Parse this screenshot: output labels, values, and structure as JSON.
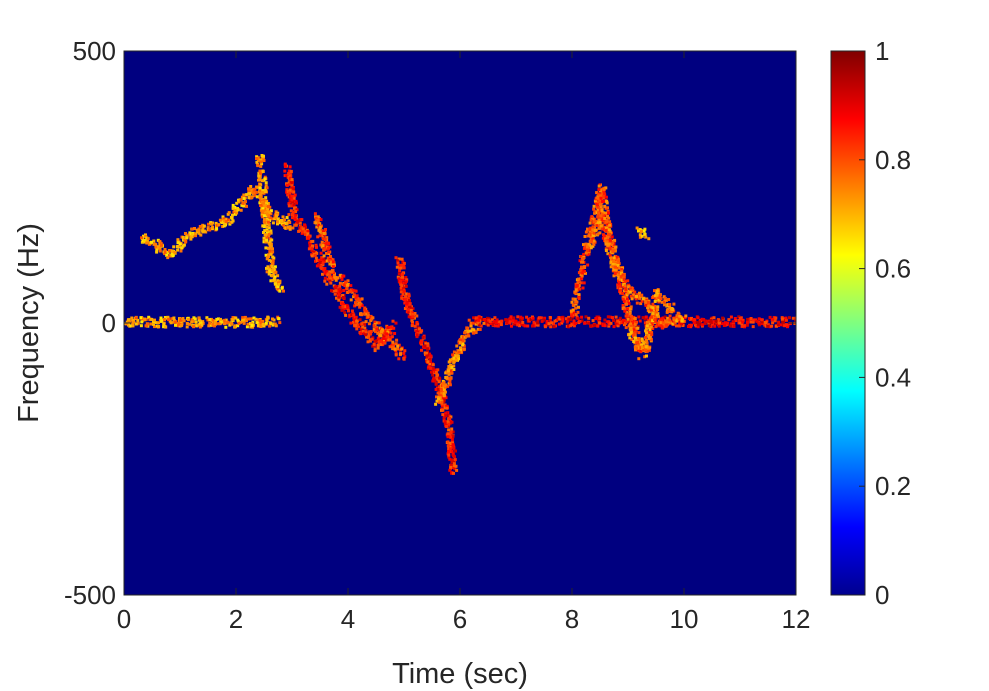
{
  "chart_data": {
    "type": "heatmap",
    "title": "",
    "xlabel": "Time (sec)",
    "ylabel": "Frequency (Hz)",
    "xlim": [
      0,
      12
    ],
    "ylim": [
      -500,
      500
    ],
    "x_ticks": [
      0,
      2,
      4,
      6,
      8,
      10,
      12
    ],
    "y_ticks": [
      -500,
      0,
      500
    ],
    "x_tick_labels": [
      "0",
      "2",
      "4",
      "6",
      "8",
      "10",
      "12"
    ],
    "y_tick_labels": [
      "-500",
      "0",
      "500"
    ],
    "colormap": "jet",
    "background_value": 0,
    "colorbar": {
      "range": [
        0,
        1
      ],
      "ticks": [
        0,
        0.2,
        0.4,
        0.6,
        0.8,
        1
      ],
      "tick_labels": [
        "0",
        "0.2",
        "0.4",
        "0.6",
        "0.8",
        "1"
      ],
      "placement": "right"
    },
    "ridges": [
      {
        "points": [
          [
            0,
            5
          ],
          [
            1,
            4
          ],
          [
            2,
            4
          ],
          [
            2.8,
            5
          ]
        ],
        "intensity": 0.72
      },
      {
        "points": [
          [
            0.3,
            160
          ],
          [
            0.8,
            130
          ],
          [
            1.2,
            170
          ],
          [
            1.8,
            190
          ],
          [
            2.3,
            250
          ],
          [
            2.6,
            200
          ],
          [
            3.0,
            180
          ]
        ],
        "intensity": 0.72
      },
      {
        "points": [
          [
            2.4,
            310
          ],
          [
            2.5,
            200
          ],
          [
            2.6,
            100
          ],
          [
            2.8,
            60
          ]
        ],
        "intensity": 0.72
      },
      {
        "points": [
          [
            2.9,
            290
          ],
          [
            3.0,
            200
          ],
          [
            3.2,
            170
          ],
          [
            3.5,
            110
          ],
          [
            4.0,
            20
          ],
          [
            4.5,
            -40
          ],
          [
            4.8,
            0
          ]
        ],
        "intensity": 0.85
      },
      {
        "points": [
          [
            3.4,
            200
          ],
          [
            3.7,
            100
          ],
          [
            4.1,
            50
          ],
          [
            4.5,
            -10
          ],
          [
            5.0,
            -60
          ]
        ],
        "intensity": 0.8
      },
      {
        "points": [
          [
            4.9,
            120
          ],
          [
            5.0,
            50
          ],
          [
            5.3,
            -30
          ],
          [
            5.6,
            -110
          ],
          [
            5.8,
            -200
          ],
          [
            5.85,
            -275
          ]
        ],
        "intensity": 0.85
      },
      {
        "points": [
          [
            5.6,
            -140
          ],
          [
            5.9,
            -60
          ],
          [
            6.1,
            -15
          ],
          [
            6.4,
            5
          ]
        ],
        "intensity": 0.75
      },
      {
        "points": [
          [
            6.2,
            5
          ],
          [
            7,
            5
          ],
          [
            8,
            5
          ],
          [
            9,
            5
          ],
          [
            10,
            5
          ],
          [
            11,
            5
          ],
          [
            12,
            5
          ]
        ],
        "intensity": 0.87
      },
      {
        "points": [
          [
            8.0,
            20
          ],
          [
            8.2,
            120
          ],
          [
            8.4,
            210
          ],
          [
            8.5,
            250
          ],
          [
            8.6,
            180
          ],
          [
            8.8,
            90
          ],
          [
            9.0,
            20
          ],
          [
            9.2,
            -60
          ]
        ],
        "intensity": 0.8
      },
      {
        "points": [
          [
            8.3,
            150
          ],
          [
            8.5,
            200
          ],
          [
            8.7,
            120
          ],
          [
            9.0,
            60
          ],
          [
            9.3,
            40
          ],
          [
            9.6,
            0
          ],
          [
            9.8,
            10
          ]
        ],
        "intensity": 0.78
      },
      {
        "points": [
          [
            9.0,
            -10
          ],
          [
            9.3,
            -50
          ],
          [
            9.5,
            60
          ],
          [
            9.8,
            20
          ],
          [
            10.0,
            5
          ]
        ],
        "intensity": 0.76
      },
      {
        "points": [
          [
            9.2,
            170
          ],
          [
            9.3,
            160
          ]
        ],
        "intensity": 0.72
      }
    ]
  }
}
